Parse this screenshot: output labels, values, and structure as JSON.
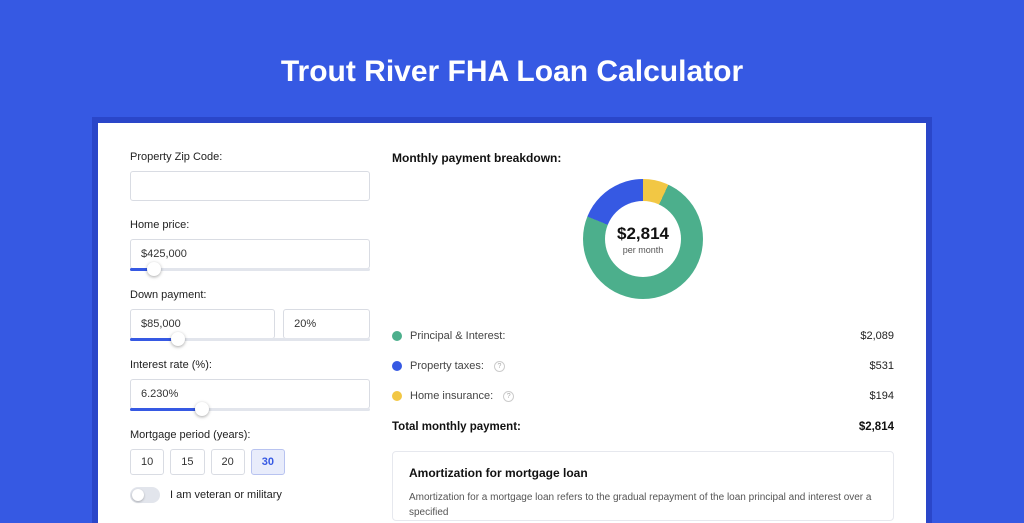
{
  "title": "Trout River FHA Loan Calculator",
  "colors": {
    "pageBg": "#3659e3",
    "cardWrapBg": "#2a46c9",
    "principal": "#4caf8c",
    "taxes": "#3659e3",
    "insurance": "#f2c744",
    "sliderFill": "#3659e3"
  },
  "form": {
    "zip": {
      "label": "Property Zip Code:",
      "value": ""
    },
    "homePrice": {
      "label": "Home price:",
      "value": "$425,000",
      "sliderPercent": 10
    },
    "downPayment": {
      "label": "Down payment:",
      "amount": "$85,000",
      "percent": "20%",
      "sliderPercent": 20
    },
    "interestRate": {
      "label": "Interest rate (%):",
      "value": "6.230%",
      "sliderPercent": 30
    },
    "mortgagePeriod": {
      "label": "Mortgage period (years):",
      "options": [
        "10",
        "15",
        "20",
        "30"
      ],
      "selected": "30"
    },
    "veteran": {
      "label": "I am veteran or military",
      "on": false
    }
  },
  "breakdown": {
    "title": "Monthly payment breakdown:",
    "centerValue": "$2,814",
    "centerLabel": "per month",
    "donutDegrees": {
      "principal": 267,
      "taxes": 68,
      "insurance": 25
    },
    "items": [
      {
        "key": "principal",
        "label": "Principal & Interest:",
        "value": "$2,089",
        "color": "#4caf8c",
        "info": false
      },
      {
        "key": "taxes",
        "label": "Property taxes:",
        "value": "$531",
        "color": "#3659e3",
        "info": true
      },
      {
        "key": "insurance",
        "label": "Home insurance:",
        "value": "$194",
        "color": "#f2c744",
        "info": true
      }
    ],
    "totalLabel": "Total monthly payment:",
    "totalValue": "$2,814"
  },
  "amortization": {
    "title": "Amortization for mortgage loan",
    "text": "Amortization for a mortgage loan refers to the gradual repayment of the loan principal and interest over a specified"
  }
}
